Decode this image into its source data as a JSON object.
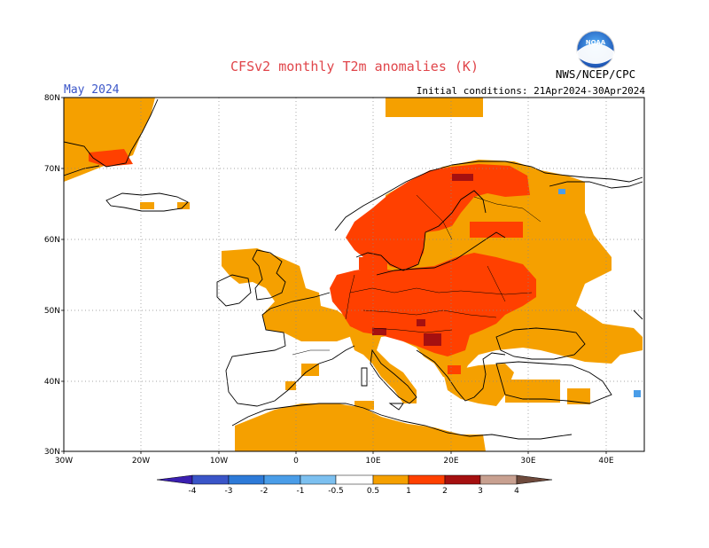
{
  "title": "CFSv2 monthly T2m anomalies (K)",
  "period": "May 2024",
  "initial_conditions": "Initial conditions: 21Apr2024-30Apr2024",
  "agency": "NWS/NCEP/CPC",
  "logo_text": "NOAA",
  "map": {
    "lon_range": [
      -30,
      45
    ],
    "lat_range": [
      30,
      80
    ],
    "lat_ticks": [
      "30N",
      "40N",
      "50N",
      "60N",
      "70N",
      "80N"
    ],
    "lon_ticks": [
      "30W",
      "20W",
      "10W",
      "0",
      "10E",
      "20E",
      "30E",
      "40E"
    ],
    "grid": "dotted",
    "anomaly_regions": [
      {
        "level": "0.5-1",
        "area": "Scandinavia, central/eastern Europe, western Russia, Iberia, Britain, North Africa"
      },
      {
        "level": "1-2",
        "area": "Norway, Sweden, Finland, central Europe, Balkans"
      },
      {
        "level": "2-3",
        "area": "northern Norway, Balkans"
      }
    ]
  },
  "colorbar": {
    "labels": [
      "-4",
      "-3",
      "-2",
      "-1",
      "-0.5",
      "0.5",
      "1",
      "2",
      "3",
      "4"
    ],
    "colors": [
      "#3a1fb0",
      "#3a55c8",
      "#2d7ad8",
      "#4a9de8",
      "#7cc0f0",
      "#ffffff",
      "#f5a000",
      "#ff4000",
      "#a51010",
      "#c8a090",
      "#6e4a3c"
    ]
  },
  "colors": {
    "anom_0_5": "#f5a000",
    "anom_1": "#ff4000",
    "anom_2": "#a51010",
    "anom_neg": "#4a9de8"
  }
}
